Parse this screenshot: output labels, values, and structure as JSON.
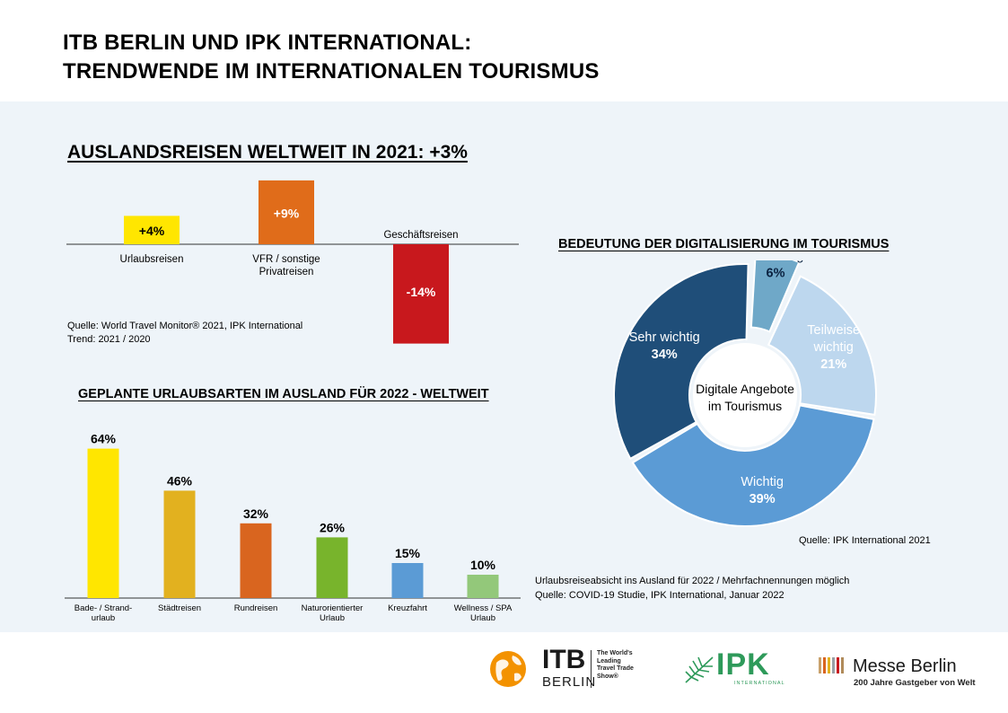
{
  "header": {
    "title_line1": "ITB BERLIN UND IPK INTERNATIONAL:",
    "title_line2": "TRENDWENDE IM INTERNATIONALEN TOURISMUS"
  },
  "section1": {
    "heading": "AUSLANDSREISEN WELTWEIT IN 2021: +3%",
    "source_line1": "Quelle: World Travel Monitor®  2021, IPK International",
    "source_line2": "Trend: 2021 / 2020"
  },
  "section2": {
    "heading": "GEPLANTE URLAUBSARTEN IM AUSLAND FÜR 2022 - WELTWEIT",
    "note_line1": "Urlaubsreiseabsicht ins Ausland für 2022 / Mehrfachnennungen möglich",
    "note_line2": "Quelle: COVID-19 Studie, IPK International, Januar 2022"
  },
  "section3": {
    "heading": "BEDEUTUNG DER DIGITALISIERUNG IM TOURISMUS",
    "center_line1": "Digitale Angebote",
    "center_line2": "im Tourismus",
    "source": "Quelle: IPK International 2021"
  },
  "footer": {
    "itb_name": "ITB",
    "itb_sub": "BERLIN",
    "itb_tag1": "The World's",
    "itb_tag2": "Leading",
    "itb_tag3": "Travel Trade",
    "itb_tag4": "Show®",
    "ipk_name": "IPK",
    "ipk_sub": "INTERNATIONAL",
    "messe_name": "Messe Berlin",
    "messe_sub": "200 Jahre Gastgeber von Welt"
  },
  "colors": {
    "band": "#eef4f9",
    "yellow": "#ffe600",
    "orange": "#e06c1a",
    "red": "#c8181d",
    "gold": "#e2b11f",
    "dark_orange": "#d9651f",
    "green": "#78b42c",
    "blue": "#5b9bd5",
    "light_green": "#93c87a",
    "navy": "#1f4e79",
    "mid_blue": "#5b9bd5",
    "light_blue": "#bdd7ee",
    "teal_blue": "#6fa8c8"
  },
  "chart_data": [
    {
      "type": "bar",
      "categories": [
        "Urlaubsreisen",
        "VFR / sonstige Privatreisen",
        "Geschäftsreisen"
      ],
      "values": [
        4,
        9,
        -14
      ],
      "labels": [
        "+4%",
        "+9%",
        "-14%"
      ],
      "category_lines": [
        [
          "Urlaubsreisen"
        ],
        [
          "VFR / sonstige",
          "Privatreisen"
        ],
        [
          "Geschäftsreisen"
        ]
      ],
      "colors": [
        "#ffe600",
        "#e06c1a",
        "#c8181d"
      ],
      "unit": "%"
    },
    {
      "type": "bar",
      "categories": [
        "Bade- / Strand-urlaub",
        "Städtreisen",
        "Rundreisen",
        "Naturorientierter Urlaub",
        "Kreuzfahrt",
        "Wellness / SPA Urlaub"
      ],
      "category_lines": [
        [
          "Bade- / Strand-",
          "urlaub"
        ],
        [
          "Städtreisen"
        ],
        [
          "Rundreisen"
        ],
        [
          "Naturorientierter",
          "Urlaub"
        ],
        [
          "Kreuzfahrt"
        ],
        [
          "Wellness / SPA",
          "Urlaub"
        ]
      ],
      "values": [
        64,
        46,
        32,
        26,
        15,
        10
      ],
      "labels": [
        "64%",
        "46%",
        "32%",
        "26%",
        "15%",
        "10%"
      ],
      "colors": [
        "#ffe600",
        "#e2b11f",
        "#d9651f",
        "#78b42c",
        "#5b9bd5",
        "#93c87a"
      ],
      "unit": "%"
    },
    {
      "type": "pie",
      "donut": true,
      "categories": [
        "Sehr wichtig",
        "Unwichtig",
        "Teilweise wichtig",
        "Wichtig"
      ],
      "category_lines": [
        [
          "Sehr wichtig"
        ],
        [
          "Unwichtig"
        ],
        [
          "Teilweise",
          "wichtig"
        ],
        [
          "Wichtig"
        ]
      ],
      "values": [
        34,
        6,
        21,
        39
      ],
      "labels": [
        "34%",
        "6%",
        "21%",
        "39%"
      ],
      "colors": [
        "#1f4e79",
        "#6fa8c8",
        "#bdd7ee",
        "#5b9bd5"
      ],
      "exploded": [
        "Unwichtig"
      ],
      "unit": "%"
    }
  ]
}
